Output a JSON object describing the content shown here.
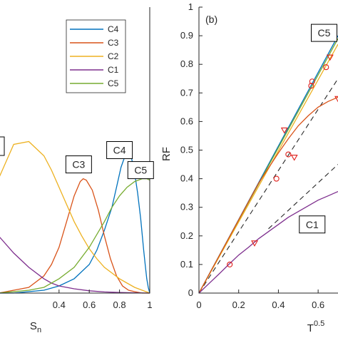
{
  "chart_data": [
    {
      "type": "line",
      "xlabel": "S",
      "xlabel_sub": "n",
      "xlim": [
        0.0,
        1.0
      ],
      "ylim": [
        0,
        1
      ],
      "xticks": [
        "0.4",
        "0.6",
        "0.8",
        "1"
      ],
      "xtick_values": [
        0.4,
        0.6,
        0.8,
        1.0
      ],
      "grid": false,
      "legend_position": "top-right",
      "series": [
        {
          "name": "C4",
          "color": "#0072BD",
          "x": [
            0.0,
            0.1,
            0.2,
            0.3,
            0.4,
            0.5,
            0.6,
            0.65,
            0.7,
            0.75,
            0.78,
            0.81,
            0.84,
            0.86,
            0.88,
            0.9,
            0.92,
            0.94,
            0.96,
            0.97,
            0.98,
            0.99,
            1.0
          ],
          "y": [
            0.0,
            0.0,
            0.005,
            0.01,
            0.025,
            0.05,
            0.1,
            0.15,
            0.22,
            0.3,
            0.37,
            0.44,
            0.485,
            0.49,
            0.47,
            0.42,
            0.35,
            0.26,
            0.15,
            0.1,
            0.05,
            0.02,
            0.0
          ]
        },
        {
          "name": "C3",
          "color": "#D95319",
          "x": [
            0.0,
            0.2,
            0.3,
            0.35,
            0.4,
            0.45,
            0.5,
            0.54,
            0.56,
            0.58,
            0.62,
            0.66,
            0.7,
            0.74,
            0.78,
            0.82,
            0.86,
            0.9,
            0.95,
            1.0
          ],
          "y": [
            0.0,
            0.02,
            0.06,
            0.1,
            0.16,
            0.25,
            0.34,
            0.39,
            0.4,
            0.395,
            0.36,
            0.29,
            0.2,
            0.12,
            0.06,
            0.025,
            0.01,
            0.005,
            0.0,
            0.0
          ]
        },
        {
          "name": "C2",
          "color": "#EDB120",
          "x": [
            0.0,
            0.1,
            0.2,
            0.3,
            0.35,
            0.4,
            0.45,
            0.5,
            0.55,
            0.6,
            0.65,
            0.7,
            0.75,
            0.8,
            0.85,
            0.9,
            0.95,
            1.0
          ],
          "y": [
            0.4,
            0.52,
            0.53,
            0.48,
            0.43,
            0.37,
            0.31,
            0.25,
            0.2,
            0.155,
            0.12,
            0.09,
            0.07,
            0.05,
            0.035,
            0.02,
            0.01,
            0.0
          ]
        },
        {
          "name": "C1",
          "color": "#7E2F8E",
          "x": [
            0.0,
            0.1,
            0.2,
            0.3,
            0.35,
            0.4,
            0.5,
            0.6,
            0.7,
            0.8,
            0.9,
            1.0
          ],
          "y": [
            0.2,
            0.14,
            0.09,
            0.05,
            0.035,
            0.025,
            0.015,
            0.008,
            0.004,
            0.002,
            0.001,
            0.0
          ]
        },
        {
          "name": "C5",
          "color": "#77AC30",
          "x": [
            0.0,
            0.2,
            0.3,
            0.4,
            0.5,
            0.6,
            0.7,
            0.75,
            0.8,
            0.85,
            0.9,
            0.95,
            0.98,
            1.0
          ],
          "y": [
            0.0,
            0.01,
            0.02,
            0.05,
            0.09,
            0.16,
            0.25,
            0.3,
            0.34,
            0.37,
            0.39,
            0.4,
            0.4,
            0.395
          ]
        }
      ],
      "annotations": [
        {
          "text": "C3",
          "x": 0.53,
          "y": 0.45
        },
        {
          "text": "C4",
          "x": 0.8,
          "y": 0.5
        },
        {
          "text": "C5",
          "x": 0.94,
          "y": 0.43
        }
      ]
    },
    {
      "type": "line",
      "panel_label": "(b)",
      "xlabel": "T",
      "xlabel_sup": "0.5",
      "ylabel": "RF",
      "xlim": [
        0,
        0.7
      ],
      "ylim": [
        0,
        1
      ],
      "xticks": [
        "0",
        "0.2",
        "0.4",
        "0.6"
      ],
      "xtick_values": [
        0,
        0.2,
        0.4,
        0.6
      ],
      "yticks": [
        "0",
        "0.1",
        "0.2",
        "0.3",
        "0.4",
        "0.5",
        "0.6",
        "0.7",
        "0.8",
        "0.9",
        "1"
      ],
      "ytick_values": [
        0,
        0.1,
        0.2,
        0.3,
        0.4,
        0.5,
        0.6,
        0.7,
        0.8,
        0.9,
        1.0
      ],
      "grid": false,
      "series": [
        {
          "name": "C4",
          "color": "#0072BD",
          "x": [
            0,
            0.7
          ],
          "y": [
            0,
            0.9
          ]
        },
        {
          "name": "C5",
          "color": "#77AC30",
          "x": [
            0,
            0.7
          ],
          "y": [
            0,
            0.89
          ]
        },
        {
          "name": "C2",
          "color": "#EDB120",
          "x": [
            0,
            0.7
          ],
          "y": [
            0,
            0.87
          ]
        },
        {
          "name": "C3",
          "color": "#D95319",
          "x": [
            0,
            0.1,
            0.2,
            0.3,
            0.4,
            0.45,
            0.5,
            0.55,
            0.6,
            0.65,
            0.7
          ],
          "y": [
            0,
            0.128,
            0.256,
            0.384,
            0.49,
            0.54,
            0.585,
            0.62,
            0.65,
            0.67,
            0.685
          ]
        },
        {
          "name": "C1",
          "color": "#7E2F8E",
          "x": [
            0,
            0.05,
            0.1,
            0.15,
            0.2,
            0.25,
            0.3,
            0.35,
            0.4,
            0.45,
            0.5,
            0.55,
            0.6,
            0.65,
            0.7
          ],
          "y": [
            0,
            0.033,
            0.066,
            0.1,
            0.133,
            0.16,
            0.19,
            0.215,
            0.24,
            0.265,
            0.285,
            0.305,
            0.325,
            0.34,
            0.355
          ]
        }
      ],
      "dashed_lines": [
        {
          "x": [
            0,
            0.7
          ],
          "y": [
            0,
            0.75
          ]
        },
        {
          "x": [
            0.35,
            0.7
          ],
          "y": [
            0.225,
            0.45
          ]
        }
      ],
      "circle_markers": {
        "color": "#E0201B",
        "x": [
          0.155,
          0.39,
          0.45,
          0.57,
          0.565,
          0.64
        ],
        "y": [
          0.1,
          0.4,
          0.485,
          0.74,
          0.725,
          0.79
        ]
      },
      "triangle_markers": {
        "color": "#E0201B",
        "x": [
          0.28,
          0.43,
          0.48,
          0.66,
          0.7
        ],
        "y": [
          0.175,
          0.57,
          0.475,
          0.825,
          0.68
        ]
      },
      "annotations": [
        {
          "text": "C5",
          "x": 0.63,
          "y": 0.91
        },
        {
          "text": "C1",
          "x": 0.57,
          "y": 0.24
        }
      ]
    }
  ],
  "legend": {
    "entries": [
      {
        "label": "C4",
        "color": "#0072BD"
      },
      {
        "label": "C3",
        "color": "#D95319"
      },
      {
        "label": "C2",
        "color": "#EDB120"
      },
      {
        "label": "C1",
        "color": "#7E2F8E"
      },
      {
        "label": "C5",
        "color": "#77AC30"
      }
    ]
  },
  "left_edge_label_color": "#000000"
}
